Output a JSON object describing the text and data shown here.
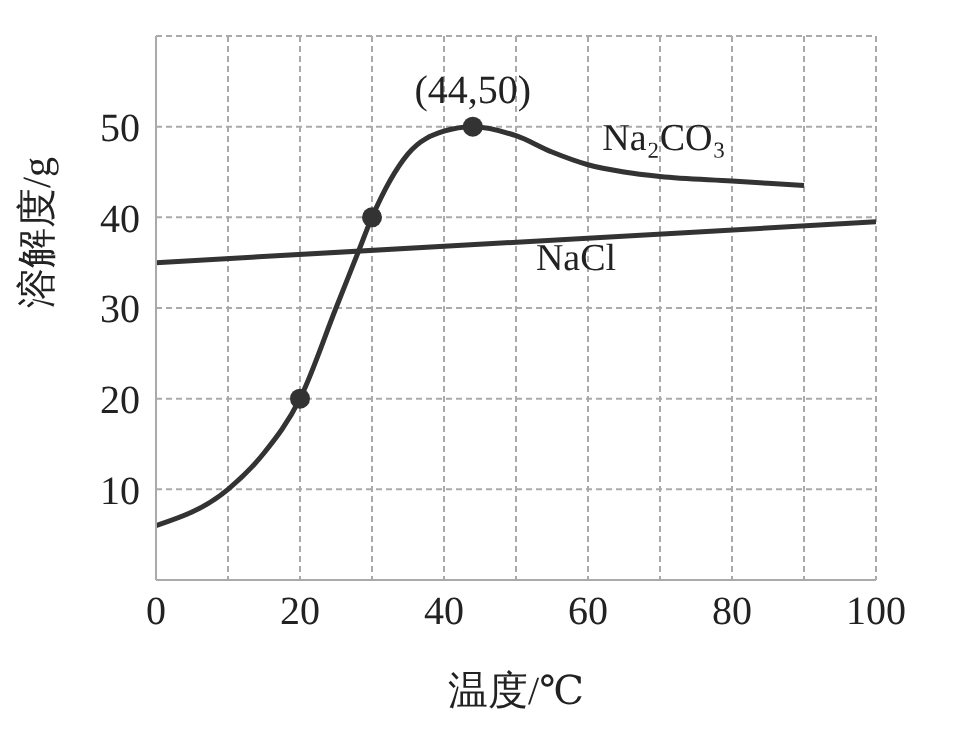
{
  "chart_data": {
    "type": "line",
    "xlabel": "温度/℃",
    "ylabel": "溶解度/g",
    "xlim": [
      0,
      100
    ],
    "ylim": [
      0,
      60
    ],
    "xticks": [
      0,
      {
        "value": 10,
        "label": null
      },
      20,
      {
        "value": 30,
        "label": null
      },
      40,
      {
        "value": 50,
        "label": null
      },
      60,
      {
        "value": 70,
        "label": null
      },
      80,
      {
        "value": 90,
        "label": null
      },
      100
    ],
    "yticks": [
      {
        "value": 0,
        "label": null
      },
      10,
      20,
      30,
      40,
      50,
      {
        "value": 60,
        "label": null
      }
    ],
    "grid": true,
    "legend": false,
    "line_style": "solid",
    "series": [
      {
        "name": "Na₂CO₃",
        "color": "#333333",
        "x": [
          0,
          10,
          15,
          20,
          25,
          28,
          30,
          35,
          40,
          44,
          50,
          55,
          60,
          65,
          70,
          80,
          90
        ],
        "values": [
          6,
          10,
          14,
          20,
          30,
          36,
          40,
          47,
          49.5,
          50,
          49,
          47.2,
          45.8,
          45,
          44.5,
          44,
          43.5
        ]
      },
      {
        "name": "NaCl",
        "color": "#333333",
        "x": [
          0,
          100
        ],
        "values": [
          35,
          39.5
        ]
      },
      {
        "type": "scatter",
        "marker": "circle",
        "color": "#333333",
        "x": [
          20,
          30,
          44
        ],
        "values": [
          20,
          40,
          50
        ]
      }
    ],
    "annotations": [
      {
        "text": "(44,50)",
        "x": 44,
        "y": 50
      }
    ]
  }
}
